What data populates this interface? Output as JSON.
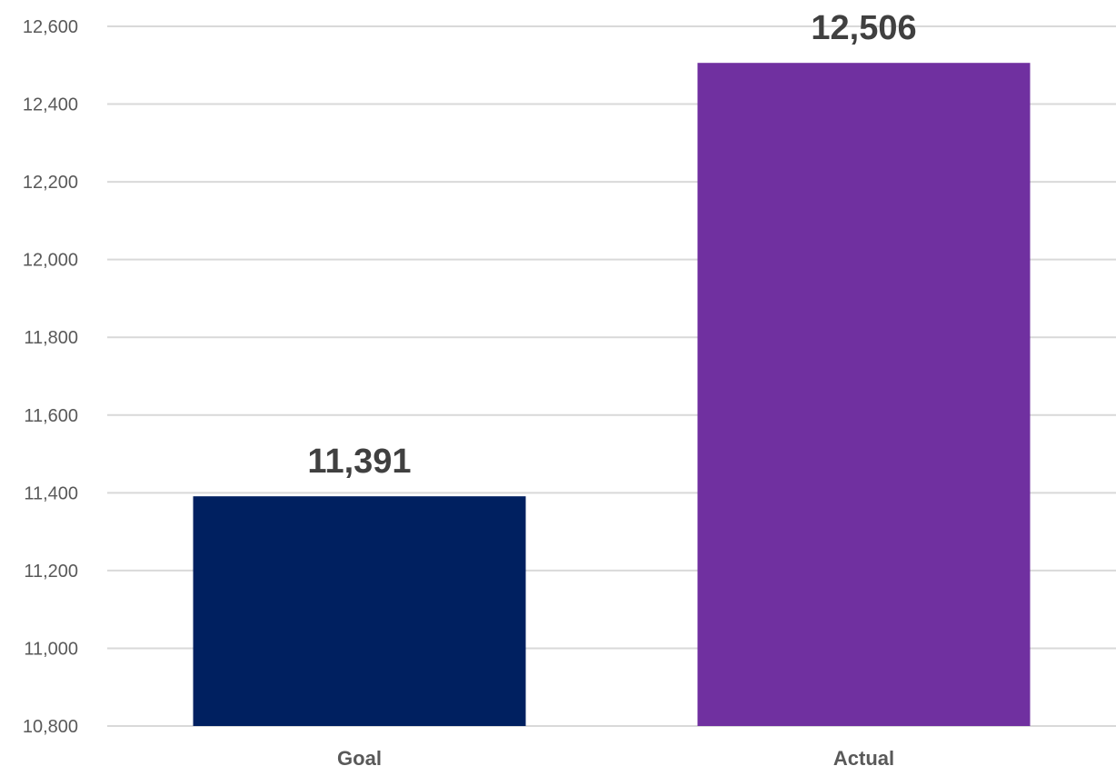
{
  "chart_data": {
    "type": "bar",
    "title": "",
    "xlabel": "",
    "ylabel": "",
    "categories": [
      "Goal",
      "Actual"
    ],
    "values": [
      11391,
      12506
    ],
    "data_labels": [
      "11,391",
      "12,506"
    ],
    "colors": [
      "#002060",
      "#7030a0"
    ],
    "ylim": [
      10800,
      12600
    ],
    "y_ticks": [
      10800,
      11000,
      11200,
      11400,
      11600,
      11800,
      12000,
      12200,
      12400,
      12600
    ],
    "y_tick_labels": [
      "10,800",
      "11,000",
      "11,200",
      "11,400",
      "11,600",
      "11,800",
      "12,000",
      "12,200",
      "12,400",
      "12,600"
    ],
    "grid": true,
    "legend": "none"
  }
}
